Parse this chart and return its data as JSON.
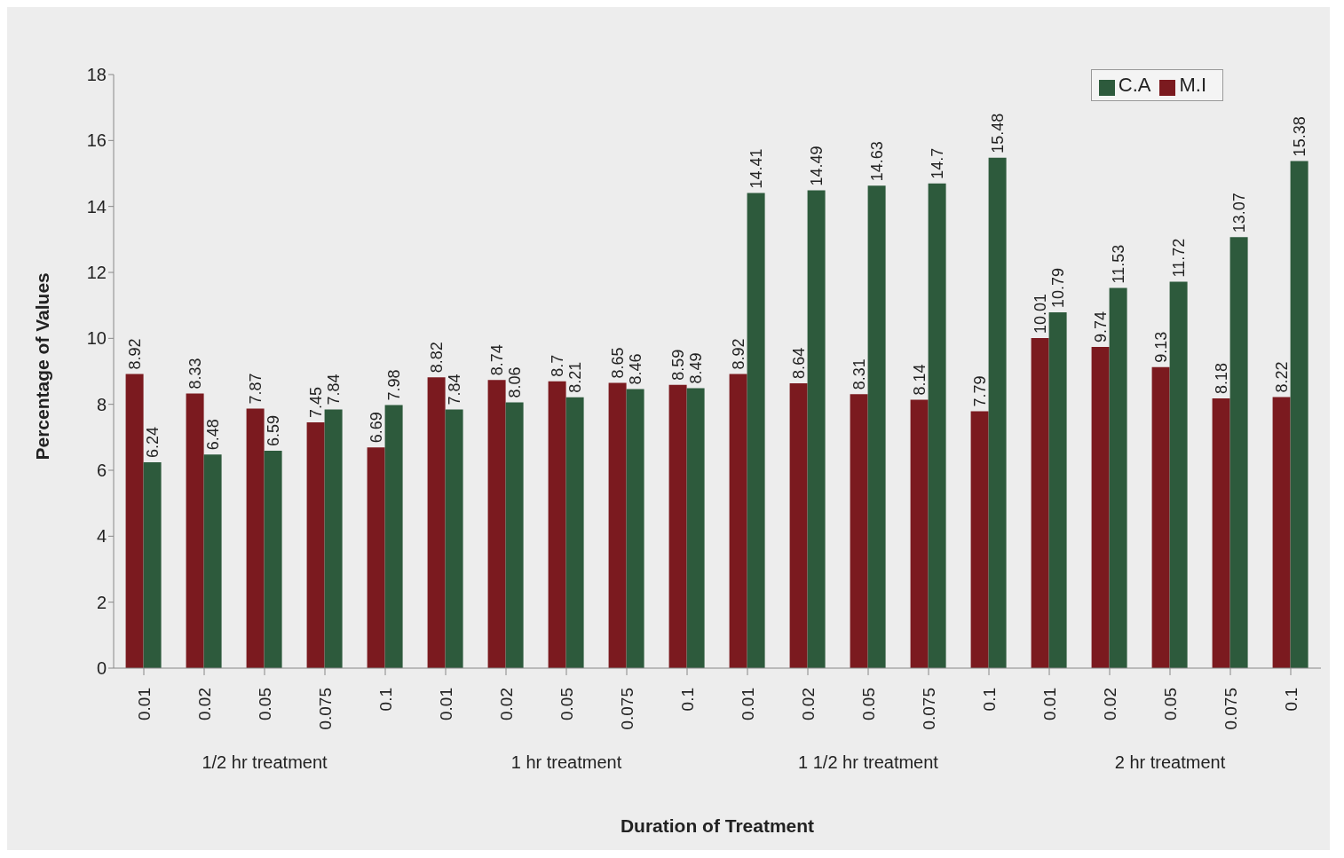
{
  "chart_data": {
    "type": "bar",
    "xlabel": "Duration of Treatment",
    "ylabel": "Percentage of Values",
    "categories": [
      "0.01",
      "0.02",
      "0.05",
      "0.075",
      "0.1",
      "0.01",
      "0.02",
      "0.05",
      "0.075",
      "0.1",
      "0.01",
      "0.02",
      "0.05",
      "0.075",
      "0.1",
      "0.01",
      "0.02",
      "0.05",
      "0.075",
      "0.1"
    ],
    "annotations": [
      "1/2 hr treatment",
      "1 hr treatment",
      "1 1/2 hr treatment",
      "2 hr treatment"
    ],
    "series": [
      {
        "name": "M.I",
        "color": "#7b1a1f",
        "values": [
          8.92,
          8.33,
          7.87,
          7.45,
          6.69,
          8.82,
          8.74,
          8.7,
          8.65,
          8.59,
          8.92,
          8.64,
          8.31,
          8.14,
          7.79,
          10.01,
          9.74,
          9.13,
          8.18,
          8.22
        ]
      },
      {
        "name": "C.A",
        "color": "#2d5a3c",
        "values": [
          6.24,
          6.48,
          6.59,
          7.84,
          7.98,
          7.84,
          8.06,
          8.21,
          8.46,
          8.49,
          14.41,
          14.49,
          14.63,
          14.7,
          15.48,
          10.79,
          11.53,
          11.72,
          13.07,
          15.38
        ]
      }
    ],
    "ylim": [
      0,
      18
    ],
    "yticks": [
      0,
      2,
      4,
      6,
      8,
      10,
      12,
      14,
      16,
      18
    ],
    "data_labels": true,
    "legend": "top right",
    "grid": false
  }
}
